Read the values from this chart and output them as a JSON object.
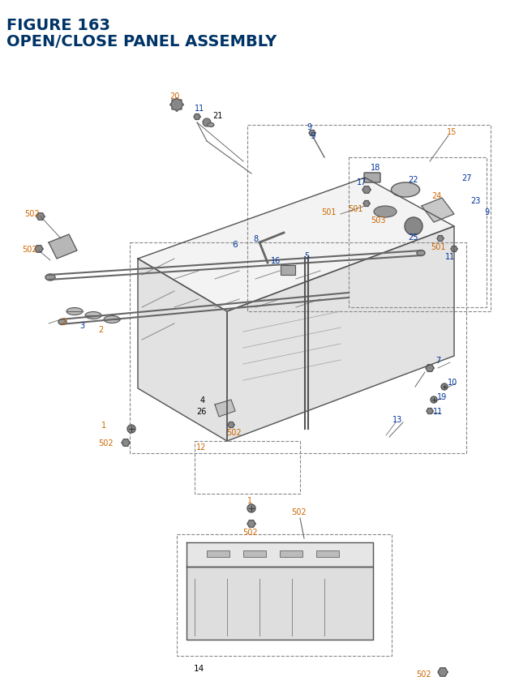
{
  "title_line1": "FIGURE 163",
  "title_line2": "OPEN/CLOSE PANEL ASSEMBLY",
  "title_color": "#003366",
  "title_fontsize": 14,
  "bg_color": "#ffffff",
  "label_color_orange": "#cc6600",
  "label_color_blue": "#003399",
  "label_color_black": "#000000"
}
